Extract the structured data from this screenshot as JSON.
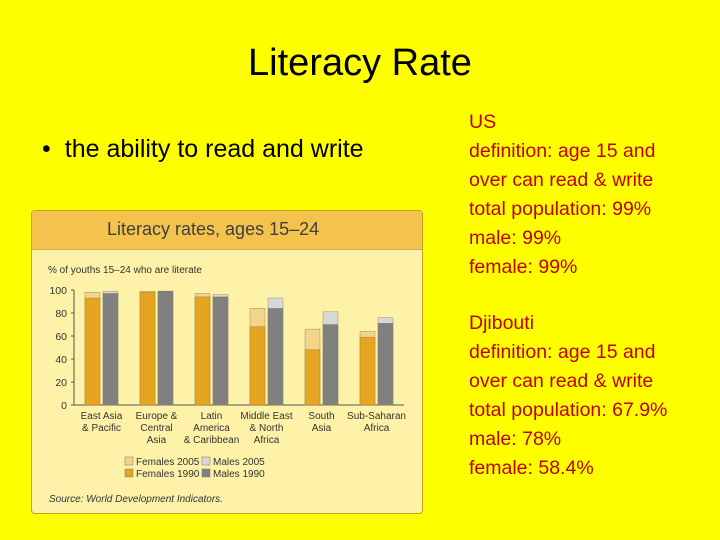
{
  "slide": {
    "title": "Literacy Rate",
    "bullet": "the ability to read and write"
  },
  "us": {
    "lines": [
      "US",
      "definition: age 15 and",
      "over can read & write",
      "total population: 99%",
      "male: 99%",
      "female: 99%"
    ]
  },
  "djibouti": {
    "lines": [
      "Djibouti",
      "definition: age 15 and",
      "over can read & write",
      "total population: 67.9%",
      "male: 78%",
      "female: 58.4%"
    ]
  },
  "colors": {
    "background": "#ffff00",
    "info_text": "#c00000"
  },
  "chart_data": {
    "type": "bar",
    "title": "Literacy rates, ages 15–24",
    "subtitle": "% of youths 15–24 who are literate",
    "source": "Source: World Development Indicators.",
    "ylim": [
      0,
      100
    ],
    "yticks": [
      "0",
      "20",
      "40",
      "60",
      "80",
      "100"
    ],
    "categories": [
      [
        "East Asia",
        "& Pacific"
      ],
      [
        "Europe &",
        "Central",
        "Asia"
      ],
      [
        "Latin",
        "America",
        "& Caribbean"
      ],
      [
        "Middle East",
        "& North",
        "Africa"
      ],
      [
        "South",
        "Asia"
      ],
      [
        "Sub-Saharan",
        "Africa"
      ]
    ],
    "series": [
      {
        "name": "Females 2005",
        "values": [
          98,
          99,
          97,
          84,
          66,
          64
        ],
        "color": "#f3d58a"
      },
      {
        "name": "Females 1990",
        "values": [
          93,
          98,
          94,
          68,
          48,
          59
        ],
        "color": "#e6a521"
      },
      {
        "name": "Males 2005",
        "values": [
          99,
          99,
          96,
          93,
          81,
          76
        ],
        "color": "#d8d8d8"
      },
      {
        "name": "Males 1990",
        "values": [
          97,
          99,
          94,
          84,
          70,
          71
        ],
        "color": "#808080"
      }
    ],
    "legend": [
      "Females 2005",
      "Males 2005",
      "Females 1990",
      "Males 1990"
    ],
    "legend_position": "bottom"
  }
}
